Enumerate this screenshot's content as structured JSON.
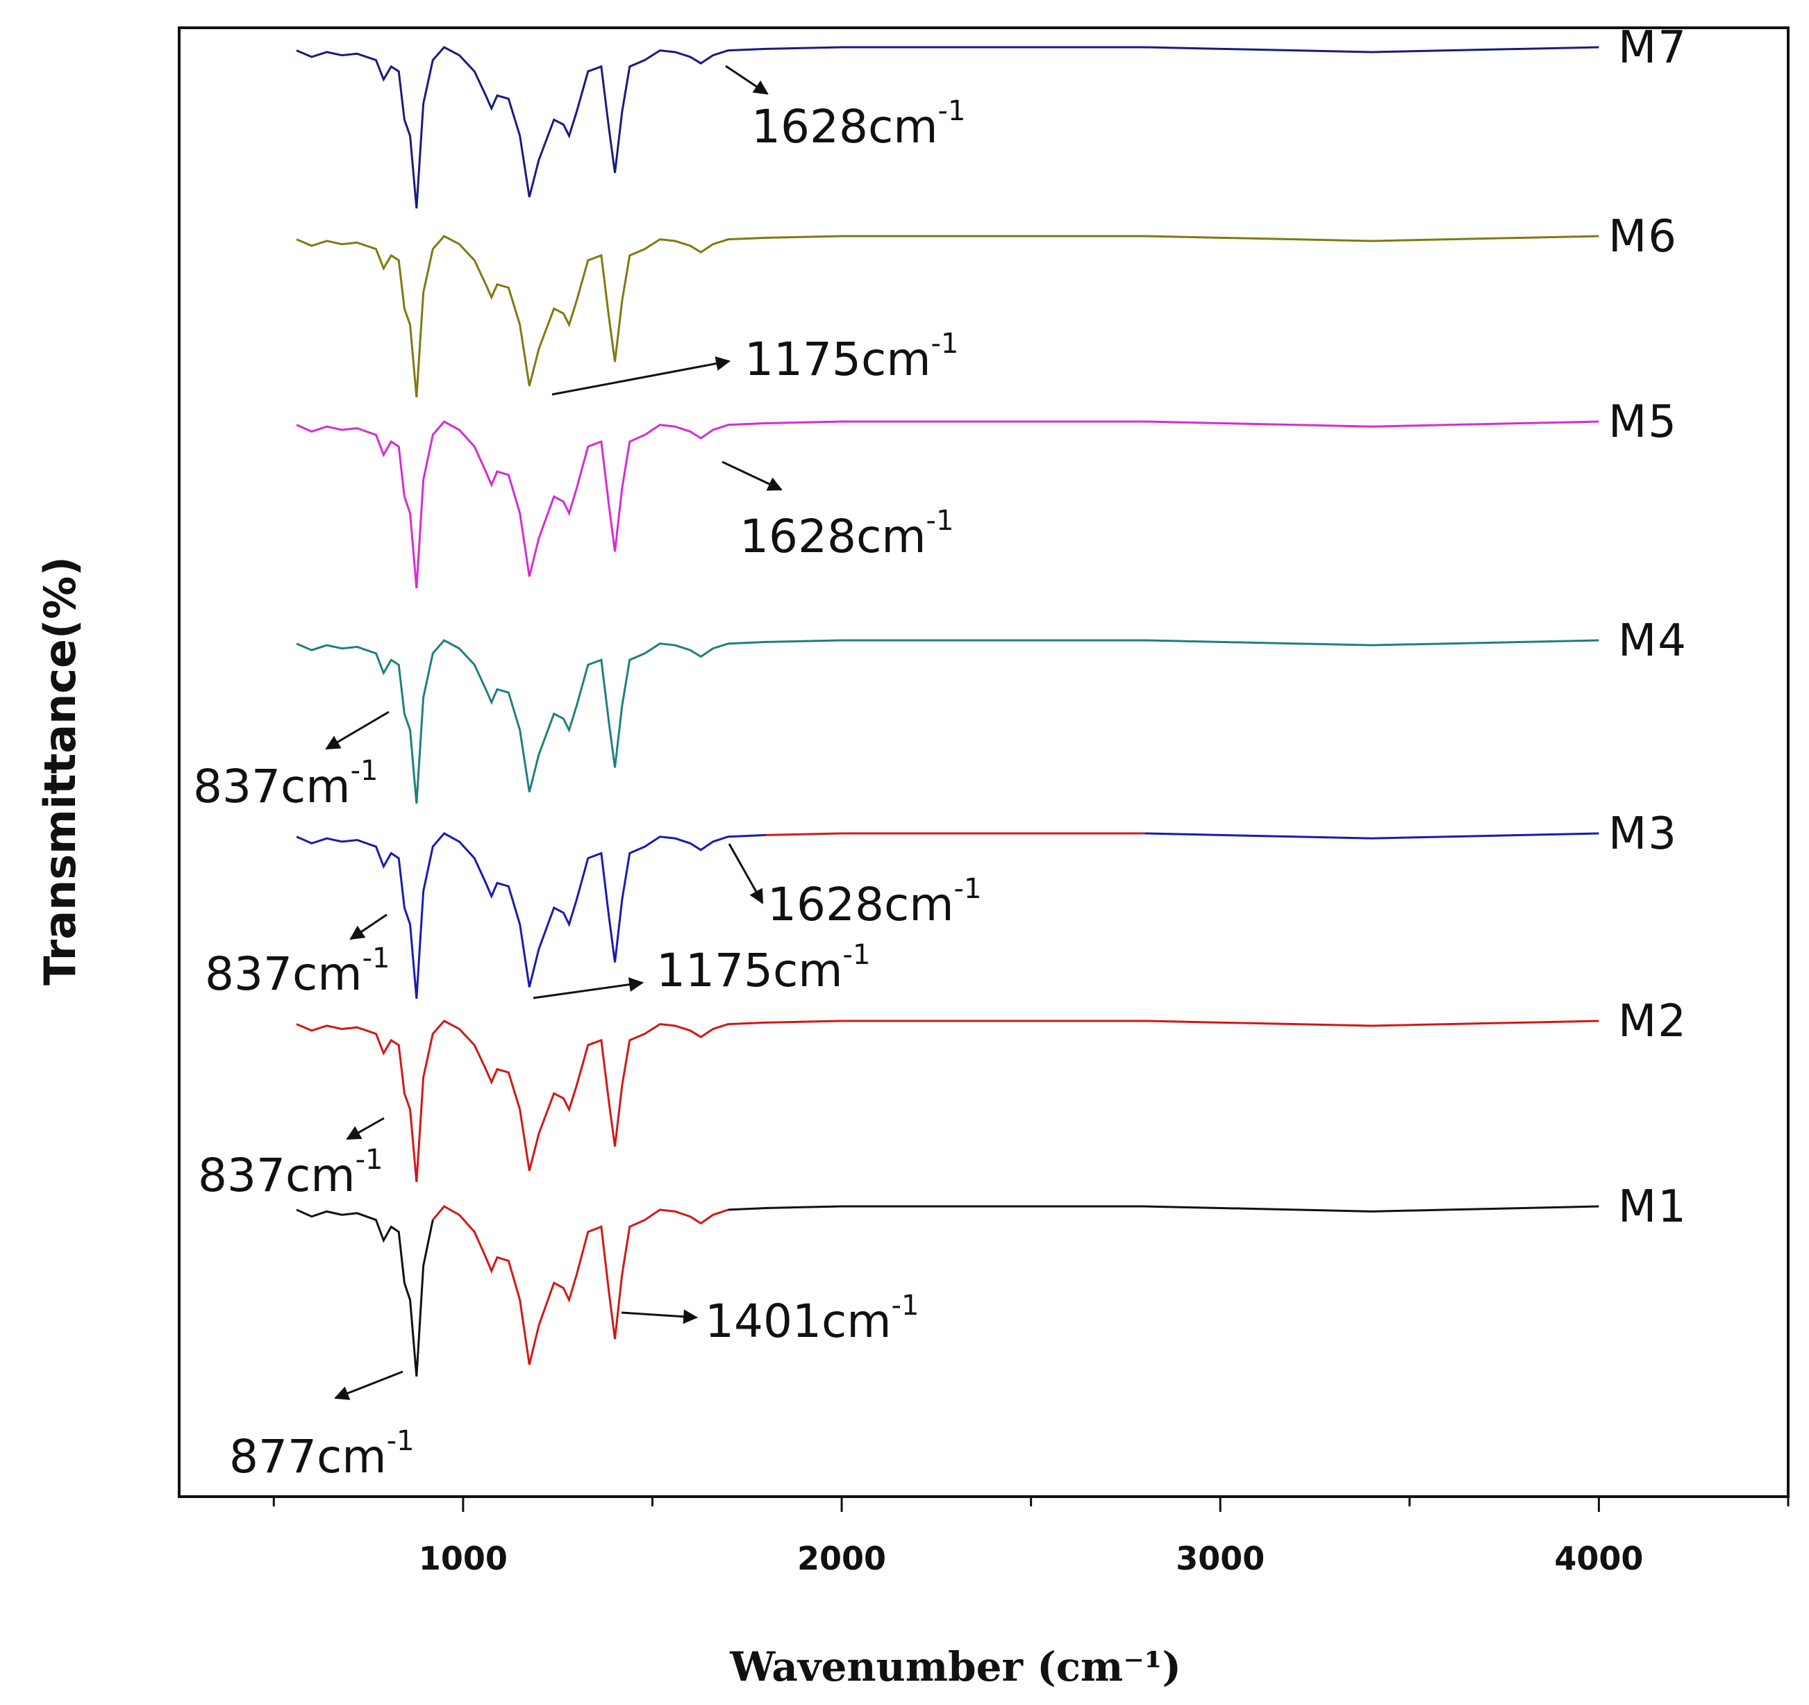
{
  "chart_data": {
    "type": "line",
    "title": "",
    "xlabel": "Wavenumber (cm⁻¹)",
    "ylabel": "Transmittance(%)",
    "xlim": [
      250,
      4500
    ],
    "xticks": [
      1000,
      2000,
      3000,
      4000
    ],
    "xtick_labels": [
      "1000",
      "2000",
      "3000",
      "4000"
    ],
    "grid": false,
    "legend": "inline labels at right end of each trace",
    "series": [
      {
        "name": "M7",
        "color": "#1a1a80",
        "label": "M7"
      },
      {
        "name": "M6",
        "color": "#7f7a10",
        "label": "M6"
      },
      {
        "name": "M5",
        "color": "#d52cd5",
        "label": "M5"
      },
      {
        "name": "M4",
        "color": "#1f7f7f",
        "label": "M4"
      },
      {
        "name": "M3",
        "color": "#1a1ab0",
        "color_segment_2": "#c81e1e",
        "label": "M3"
      },
      {
        "name": "M2",
        "color": "#d01818",
        "label": "M2"
      },
      {
        "name": "M1",
        "color": "#111111",
        "color_segment_2": "#d01818",
        "label": "M1"
      }
    ],
    "spectrum_x": [
      560,
      600,
      640,
      680,
      720,
      770,
      790,
      810,
      830,
      845,
      860,
      877,
      895,
      920,
      950,
      990,
      1030,
      1060,
      1075,
      1090,
      1120,
      1150,
      1175,
      1200,
      1240,
      1265,
      1280,
      1300,
      1330,
      1365,
      1385,
      1401,
      1420,
      1440,
      1480,
      1520,
      1560,
      1600,
      1628,
      1660,
      1700,
      1800,
      2000,
      2400,
      2800,
      3000,
      3200,
      3400,
      3600,
      3800,
      4000
    ],
    "spectrum_depth": [
      0.02,
      0.06,
      0.03,
      0.05,
      0.04,
      0.08,
      0.2,
      0.12,
      0.15,
      0.45,
      0.55,
      1.0,
      0.35,
      0.08,
      0.0,
      0.05,
      0.15,
      0.3,
      0.38,
      0.3,
      0.32,
      0.55,
      0.93,
      0.7,
      0.45,
      0.48,
      0.55,
      0.4,
      0.15,
      0.12,
      0.5,
      0.78,
      0.4,
      0.12,
      0.08,
      0.02,
      0.03,
      0.06,
      0.1,
      0.05,
      0.02,
      0.01,
      0.0,
      0.0,
      0.0,
      0.01,
      0.02,
      0.03,
      0.02,
      0.01,
      0.0
    ],
    "annotations": [
      {
        "series": "M7",
        "text": "1628cm",
        "sup": "-1",
        "peak_x": 1628
      },
      {
        "series": "M6",
        "text": "1175cm",
        "sup": "-1",
        "peak_x": 1175
      },
      {
        "series": "M5",
        "text": "1628cm",
        "sup": "-1",
        "peak_x": 1628
      },
      {
        "series": "M4",
        "text": "837cm",
        "sup": "-1",
        "peak_x": 837
      },
      {
        "series": "M3",
        "text": "1628cm",
        "sup": "-1",
        "peak_x": 1628
      },
      {
        "series": "M3",
        "text": "837cm",
        "sup": "-1",
        "peak_x": 837
      },
      {
        "series": "M3",
        "text": "1175cm",
        "sup": "-1",
        "peak_x": 1175
      },
      {
        "series": "M2",
        "text": "837cm",
        "sup": "-1",
        "peak_x": 837
      },
      {
        "series": "M1",
        "text": "1401cm",
        "sup": "-1",
        "peak_x": 1401
      },
      {
        "series": "M1",
        "text": "877cm",
        "sup": "-1",
        "peak_x": 877
      }
    ]
  }
}
